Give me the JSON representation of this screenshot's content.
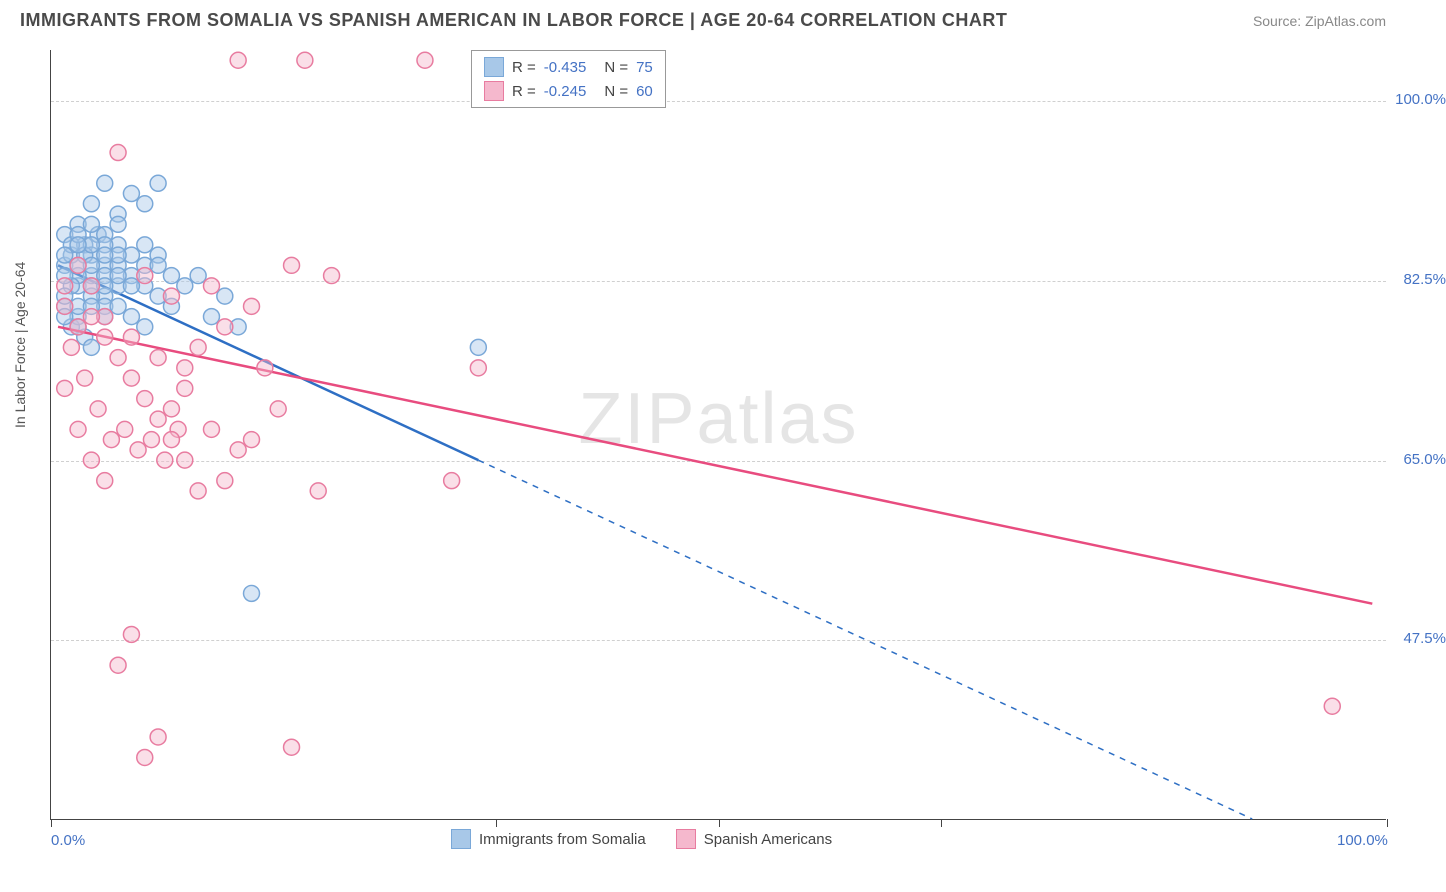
{
  "title": "IMMIGRANTS FROM SOMALIA VS SPANISH AMERICAN IN LABOR FORCE | AGE 20-64 CORRELATION CHART",
  "source": "Source: ZipAtlas.com",
  "watermark": "ZIPatlas",
  "chart": {
    "type": "scatter",
    "ylabel": "In Labor Force | Age 20-64",
    "xlim": [
      0,
      100
    ],
    "ylim": [
      30,
      105
    ],
    "yticks": [
      47.5,
      65.0,
      82.5,
      100.0
    ],
    "ytick_labels": [
      "47.5%",
      "65.0%",
      "82.5%",
      "100.0%"
    ],
    "xtick_positions": [
      0,
      33.3,
      50,
      66.6,
      100
    ],
    "xtick_labels_shown": {
      "0": "0.0%",
      "100": "100.0%"
    },
    "background_color": "#ffffff",
    "grid_color": "#d0d0d0",
    "series": [
      {
        "name": "Immigrants from Somalia",
        "marker_color": "#7aa8d8",
        "marker_fill": "#a8c8e8",
        "marker_fill_opacity": 0.45,
        "marker_radius": 8,
        "line_color": "#2e6fc4",
        "line_width": 2.5,
        "R": "-0.435",
        "N": "75",
        "regression": {
          "x1": 0.5,
          "y1": 84,
          "x2": 32,
          "y2": 65,
          "dash_x2": 90,
          "dash_y2": 30
        },
        "points": [
          [
            1,
            84
          ],
          [
            1.5,
            85
          ],
          [
            2,
            82
          ],
          [
            2.5,
            86
          ],
          [
            3,
            83
          ],
          [
            3.5,
            87
          ],
          [
            4,
            81
          ],
          [
            2,
            88
          ],
          [
            3,
            90
          ],
          [
            4,
            92
          ],
          [
            5,
            89
          ],
          [
            1,
            80
          ],
          [
            1.5,
            78
          ],
          [
            2,
            79
          ],
          [
            2.5,
            77
          ],
          [
            3,
            76
          ],
          [
            4,
            84
          ],
          [
            5,
            86
          ],
          [
            6,
            91
          ],
          [
            7,
            90
          ],
          [
            1,
            87
          ],
          [
            2,
            83
          ],
          [
            3,
            85
          ],
          [
            4,
            80
          ],
          [
            5,
            82
          ],
          [
            6,
            79
          ],
          [
            7,
            78
          ],
          [
            8,
            85
          ],
          [
            9,
            83
          ],
          [
            3,
            88
          ],
          [
            4,
            87
          ],
          [
            5,
            84
          ],
          [
            1.5,
            82
          ],
          [
            2,
            80
          ],
          [
            2.5,
            85
          ],
          [
            3,
            81
          ],
          [
            4,
            86
          ],
          [
            5,
            88
          ],
          [
            6,
            83
          ],
          [
            7,
            82
          ],
          [
            8,
            92
          ],
          [
            1,
            83
          ],
          [
            1.5,
            86
          ],
          [
            2,
            84
          ],
          [
            3,
            82
          ],
          [
            4,
            79
          ],
          [
            5,
            80
          ],
          [
            6,
            85
          ],
          [
            7,
            84
          ],
          [
            8,
            81
          ],
          [
            1,
            81
          ],
          [
            2,
            87
          ],
          [
            3,
            86
          ],
          [
            4,
            83
          ],
          [
            5,
            85
          ],
          [
            6,
            82
          ],
          [
            7,
            86
          ],
          [
            8,
            84
          ],
          [
            9,
            80
          ],
          [
            10,
            82
          ],
          [
            1,
            79
          ],
          [
            2,
            78
          ],
          [
            3,
            80
          ],
          [
            4,
            82
          ],
          [
            5,
            83
          ],
          [
            11,
            83
          ],
          [
            12,
            79
          ],
          [
            13,
            81
          ],
          [
            14,
            78
          ],
          [
            15,
            52
          ],
          [
            32,
            76
          ],
          [
            1,
            85
          ],
          [
            2,
            86
          ],
          [
            3,
            84
          ],
          [
            4,
            85
          ]
        ]
      },
      {
        "name": "Spanish Americans",
        "marker_color": "#e87ca0",
        "marker_fill": "#f5b8cd",
        "marker_fill_opacity": 0.45,
        "marker_radius": 8,
        "line_color": "#e84c7f",
        "line_width": 2.5,
        "R": "-0.245",
        "N": "60",
        "regression": {
          "x1": 0.5,
          "y1": 78,
          "x2": 99,
          "y2": 51
        },
        "points": [
          [
            1,
            80
          ],
          [
            2,
            78
          ],
          [
            3,
            82
          ],
          [
            4,
            79
          ],
          [
            5,
            95
          ],
          [
            6,
            77
          ],
          [
            7,
            83
          ],
          [
            8,
            75
          ],
          [
            9,
            81
          ],
          [
            10,
            74
          ],
          [
            1.5,
            76
          ],
          [
            2.5,
            73
          ],
          [
            3.5,
            70
          ],
          [
            4.5,
            67
          ],
          [
            5.5,
            68
          ],
          [
            6.5,
            66
          ],
          [
            7.5,
            67
          ],
          [
            8.5,
            65
          ],
          [
            9.5,
            68
          ],
          [
            11,
            62
          ],
          [
            12,
            82
          ],
          [
            13,
            63
          ],
          [
            14,
            104
          ],
          [
            15,
            80
          ],
          [
            16,
            74
          ],
          [
            17,
            70
          ],
          [
            18,
            84
          ],
          [
            19,
            104
          ],
          [
            20,
            62
          ],
          [
            21,
            83
          ],
          [
            1,
            72
          ],
          [
            2,
            68
          ],
          [
            3,
            65
          ],
          [
            4,
            63
          ],
          [
            5,
            45
          ],
          [
            6,
            48
          ],
          [
            7,
            36
          ],
          [
            8,
            38
          ],
          [
            9,
            70
          ],
          [
            10,
            72
          ],
          [
            28,
            104
          ],
          [
            30,
            63
          ],
          [
            32,
            74
          ],
          [
            96,
            41
          ],
          [
            1,
            82
          ],
          [
            2,
            84
          ],
          [
            3,
            79
          ],
          [
            4,
            77
          ],
          [
            5,
            75
          ],
          [
            6,
            73
          ],
          [
            7,
            71
          ],
          [
            8,
            69
          ],
          [
            9,
            67
          ],
          [
            10,
            65
          ],
          [
            11,
            76
          ],
          [
            12,
            68
          ],
          [
            13,
            78
          ],
          [
            14,
            66
          ],
          [
            15,
            67
          ],
          [
            18,
            37
          ]
        ]
      }
    ],
    "legend_bottom": [
      {
        "label": "Immigrants from Somalia",
        "swatch_fill": "#a8c8e8",
        "swatch_border": "#7aa8d8"
      },
      {
        "label": "Spanish Americans",
        "swatch_fill": "#f5b8cd",
        "swatch_border": "#e87ca0"
      }
    ]
  }
}
